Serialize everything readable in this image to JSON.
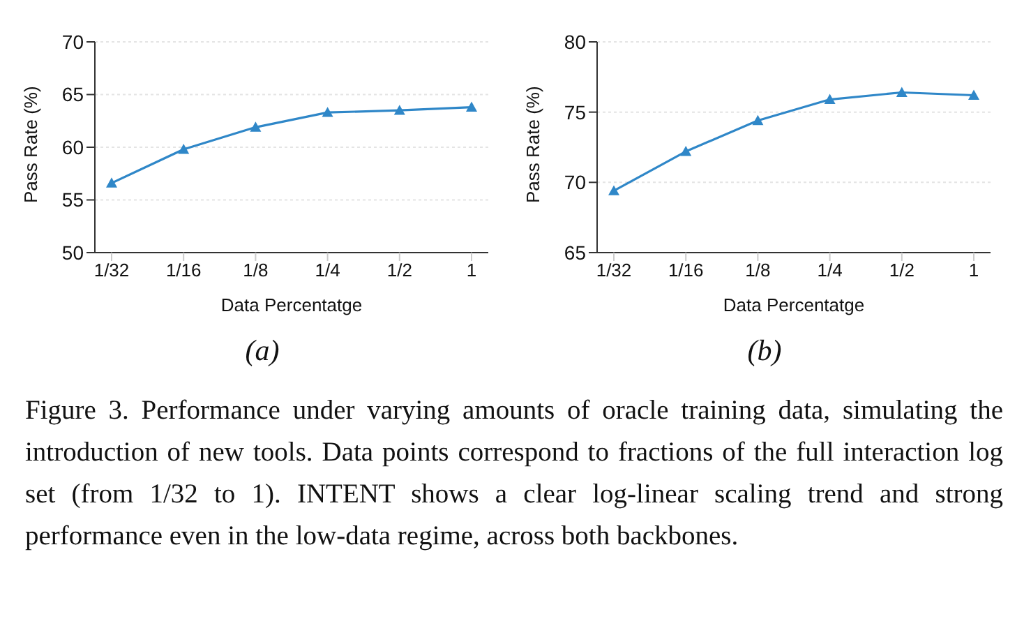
{
  "chart_data": [
    {
      "type": "line",
      "title": "(a)",
      "xlabel": "Data Percentatge",
      "ylabel": "Pass Rate (%)",
      "categories": [
        "1/32",
        "1/16",
        "1/8",
        "1/4",
        "1/2",
        "1"
      ],
      "series": [
        {
          "color": "#2f87c8",
          "values": [
            56.6,
            59.8,
            61.9,
            63.3,
            63.5,
            63.8
          ]
        }
      ],
      "ylim": [
        50,
        70
      ],
      "yticks": [
        50,
        55,
        60,
        65,
        70
      ],
      "grid": "y",
      "marker": "triangle",
      "line_style": "solid",
      "annotations": [
        "Figure 3. Performance under varying amounts of oracle training data, simulating the introduction of new tools. Data points correspond to fractions of the full interaction log set (from 1/32 to 1). INTENT shows a clear log-linear scaling trend and strong performance even in the low-data regime, across both backbones."
      ]
    },
    {
      "type": "line",
      "title": "(b)",
      "xlabel": "Data Percentatge",
      "ylabel": "Pass Rate (%)",
      "categories": [
        "1/32",
        "1/16",
        "1/8",
        "1/4",
        "1/2",
        "1"
      ],
      "series": [
        {
          "color": "#2f87c8",
          "values": [
            69.4,
            72.2,
            74.4,
            75.9,
            76.4,
            76.2
          ]
        }
      ],
      "ylim": [
        65,
        80
      ],
      "yticks": [
        65,
        70,
        75,
        80
      ],
      "grid": "y",
      "marker": "triangle",
      "line_style": "solid"
    }
  ]
}
